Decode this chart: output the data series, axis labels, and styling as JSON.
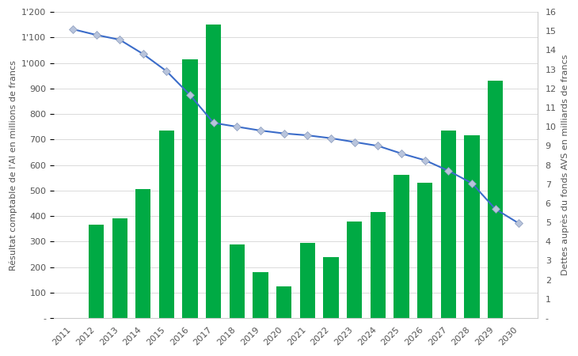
{
  "years": [
    2011,
    2012,
    2013,
    2014,
    2015,
    2016,
    2017,
    2018,
    2019,
    2020,
    2021,
    2022,
    2023,
    2024,
    2025,
    2026,
    2027,
    2028,
    2029,
    2030
  ],
  "bar_values": [
    null,
    365,
    390,
    505,
    735,
    1015,
    1150,
    290,
    180,
    125,
    295,
    240,
    380,
    415,
    560,
    530,
    735,
    715,
    930,
    null
  ],
  "line_values": [
    15.1,
    14.8,
    14.55,
    13.8,
    12.9,
    11.65,
    10.2,
    10.0,
    9.8,
    9.65,
    9.55,
    9.4,
    9.2,
    9.0,
    8.6,
    8.25,
    7.7,
    7.05,
    5.7,
    4.95
  ],
  "bar_color": "#00AA44",
  "line_color": "#3B6CC9",
  "marker_facecolor": "#B8C4DC",
  "marker_edgecolor": "#8899BB",
  "ylabel_left": "Résultat comptable de l'AI en millions de francs",
  "ylabel_right": "Dettes auprès du fonds AVS en milliards de francs",
  "ylim_left": [
    0,
    1200
  ],
  "ylim_right": [
    0,
    16
  ],
  "yticks_left": [
    0,
    100,
    200,
    300,
    400,
    500,
    600,
    700,
    800,
    900,
    1000,
    1100,
    1200
  ],
  "ytick_labels_left": [
    "-",
    "100",
    "200",
    "300",
    "400",
    "500",
    "600",
    "700",
    "800",
    "900",
    "1'000",
    "1'100",
    "1'200"
  ],
  "yticks_right": [
    0,
    1,
    2,
    3,
    4,
    5,
    6,
    7,
    8,
    9,
    10,
    11,
    12,
    13,
    14,
    15,
    16
  ],
  "ytick_labels_right": [
    "-",
    "1",
    "2",
    "3",
    "4",
    "5",
    "6",
    "7",
    "8",
    "9",
    "10",
    "11",
    "12",
    "13",
    "14",
    "15",
    "16"
  ],
  "bg_color": "#FFFFFF",
  "grid_color": "#CCCCCC",
  "tick_label_color": "#555555",
  "axis_label_fontsize": 8,
  "tick_fontsize": 8,
  "bar_width": 0.65
}
